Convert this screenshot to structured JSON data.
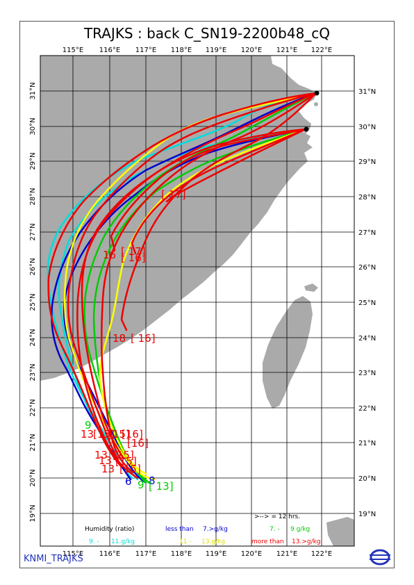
{
  "title": "TRAJKS : back C_SN19-2200b48_cQ",
  "footer": "KNMI_TRAJKS",
  "lon_labels": [
    "115°E",
    "116°E",
    "117°E",
    "118°E",
    "119°E",
    "120°E",
    "121°E",
    "122°E"
  ],
  "lat_labels_right": [
    "31°N",
    "30°N",
    "29°N",
    "28°N",
    "27°N",
    "26°N",
    "25°N",
    "24°N",
    "23°N",
    "22°N",
    "21°N",
    "20°N",
    "19°N"
  ],
  "lat_labels_left": [
    "31°N",
    "30°N",
    "29°N",
    "28°N",
    "27°N",
    "26°N",
    "25°N",
    "24°N",
    "23°N",
    "22°N",
    "21°N",
    "20°N",
    "19°N"
  ],
  "legend": {
    "arrow_note": ">--> = 12 hrs.",
    "humidity_label": "Humidity (ratio)",
    "less_than": "less than",
    "less_value": "7.>g/kg",
    "band2": "7. -",
    "band2_value": "9 g/kg",
    "band3": "9. -",
    "band3_value": "11.g/kg",
    "band4": "11 -",
    "band4_value": "13.g/kg",
    "more_than": "more than",
    "more_value": "13.>g/kg"
  },
  "colors": {
    "land": "#aaaaaa",
    "blue": "#0000cc",
    "green": "#00cc00",
    "cyan": "#00dddd",
    "yellow": "#ffff00",
    "red": "#ee0000"
  },
  "labels": [
    {
      "text": "[ 17]",
      "color": "red"
    },
    {
      "text": "16",
      "color": "red"
    },
    {
      "text": "[ 17]",
      "color": "red"
    },
    {
      "text": "[ 16]",
      "color": "red"
    },
    {
      "text": "18",
      "color": "red"
    },
    {
      "text": "[ 16]",
      "color": "red"
    },
    {
      "text": "9",
      "color": "green"
    },
    {
      "text": "13",
      "color": "red"
    },
    {
      "text": "[15]",
      "color": "red"
    },
    {
      "text": "[15]",
      "color": "red"
    },
    {
      "text": "[16]",
      "color": "red"
    },
    {
      "text": "[16]",
      "color": "red"
    },
    {
      "text": "13",
      "color": "red"
    },
    {
      "text": "[15]",
      "color": "red"
    },
    {
      "text": "13",
      "color": "red"
    },
    {
      "text": "[15]",
      "color": "red"
    },
    {
      "text": "13",
      "color": "red"
    },
    {
      "text": "[15]",
      "color": "red"
    },
    {
      "text": "6",
      "color": "blue"
    },
    {
      "text": "8",
      "color": "blue"
    },
    {
      "text": "9",
      "color": "green"
    },
    {
      "text": "[ 13]",
      "color": "green"
    }
  ]
}
